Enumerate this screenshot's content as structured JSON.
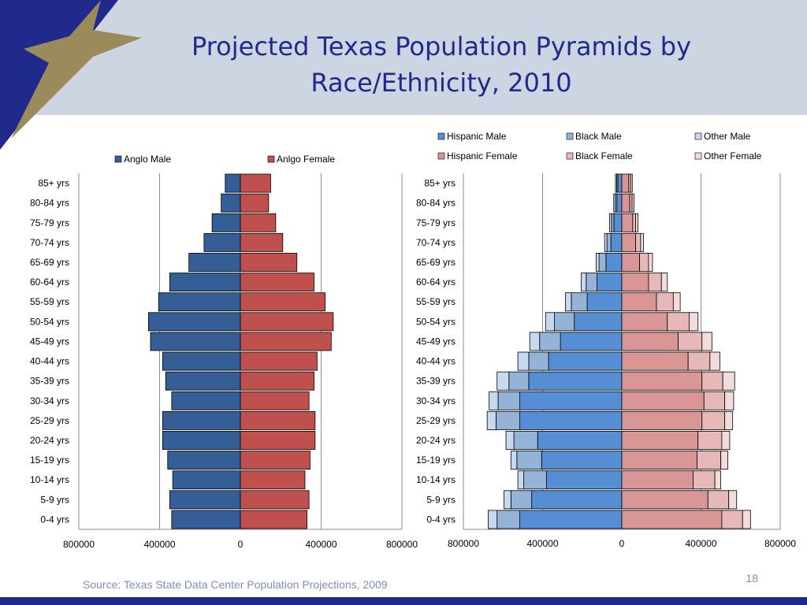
{
  "header": {
    "title_line1": "Projected Texas Population Pyramids by",
    "title_line2": "Race/Ethnicity, 2010"
  },
  "footer": {
    "source": "Source: Texas State Data Center Population Projections, 2009",
    "page_number": "18"
  },
  "colors": {
    "header_bg": "#cdd4e2",
    "title": "#1f2a8a",
    "anglo_male": "#355d96",
    "anglo_female": "#c0504d",
    "hispanic_male": "#558ed5",
    "hispanic_female": "#d99694",
    "black_male": "#95b3d7",
    "black_female": "#e6b9b8",
    "other_male": "#c6d9f1",
    "other_female": "#f2dcdb",
    "axis_highlight": "#ff0000"
  },
  "chart_data": [
    {
      "type": "bar",
      "orientation": "horizontal-pyramid",
      "categories": [
        "0-4 yrs",
        "5-9 yrs",
        "10-14 yrs",
        "15-19 yrs",
        "20-24 yrs",
        "25-29 yrs",
        "30-34 yrs",
        "35-39 yrs",
        "40-44 yrs",
        "45-49 yrs",
        "50-54 yrs",
        "55-59 yrs",
        "60-64 yrs",
        "65-69 yrs",
        "70-74 yrs",
        "75-79 yrs",
        "80-84 yrs",
        "85+ yrs"
      ],
      "series": [
        {
          "name": "Anglo Male",
          "side": "left",
          "values": [
            340000,
            350000,
            335000,
            360000,
            385000,
            385000,
            340000,
            370000,
            385000,
            445000,
            455000,
            405000,
            350000,
            255000,
            180000,
            140000,
            95000,
            75000
          ]
        },
        {
          "name": "Anlgo Female",
          "side": "right",
          "values": [
            330000,
            340000,
            320000,
            345000,
            370000,
            370000,
            340000,
            365000,
            380000,
            450000,
            460000,
            420000,
            365000,
            280000,
            210000,
            175000,
            140000,
            150000
          ]
        }
      ],
      "xlim": [
        -800000,
        800000
      ],
      "x_ticks": [
        -800000,
        -400000,
        0,
        400000,
        800000
      ],
      "x_tick_labels": [
        "800000",
        "400000",
        "0",
        "400000",
        "800000"
      ],
      "grid": "vertical",
      "legend_position": "top"
    },
    {
      "type": "bar",
      "orientation": "horizontal-pyramid-stacked",
      "categories": [
        "0-4 yrs",
        "5-9 yrs",
        "10-14 yrs",
        "15-19 yrs",
        "20-24 yrs",
        "25-29 yrs",
        "30-34 yrs",
        "35-39 yrs",
        "40-44 yrs",
        "45-49 yrs",
        "50-54 yrs",
        "55-59 yrs",
        "60-64 yrs",
        "65-69 yrs",
        "70-74 yrs",
        "75-79 yrs",
        "80-84 yrs",
        "85+ yrs"
      ],
      "series": [
        {
          "name": "Hispanic Male",
          "side": "left",
          "values": [
            515000,
            455000,
            380000,
            405000,
            425000,
            515000,
            515000,
            470000,
            370000,
            310000,
            240000,
            175000,
            125000,
            80000,
            55000,
            40000,
            25000,
            20000
          ]
        },
        {
          "name": "Black Male",
          "side": "left",
          "values": [
            115000,
            105000,
            115000,
            125000,
            120000,
            120000,
            110000,
            100000,
            100000,
            105000,
            100000,
            80000,
            55000,
            35000,
            20000,
            12000,
            8000,
            6000
          ]
        },
        {
          "name": "Other Male",
          "side": "left",
          "values": [
            45000,
            35000,
            30000,
            30000,
            40000,
            45000,
            45000,
            60000,
            55000,
            50000,
            45000,
            30000,
            25000,
            15000,
            12000,
            10000,
            8000,
            6000
          ]
        },
        {
          "name": "Hispanic Female",
          "side": "right",
          "values": [
            505000,
            435000,
            360000,
            380000,
            385000,
            405000,
            415000,
            405000,
            335000,
            285000,
            230000,
            175000,
            135000,
            90000,
            70000,
            55000,
            40000,
            35000
          ]
        },
        {
          "name": "Black Female",
          "side": "right",
          "values": [
            105000,
            105000,
            110000,
            120000,
            120000,
            115000,
            105000,
            105000,
            110000,
            120000,
            110000,
            85000,
            65000,
            45000,
            25000,
            15000,
            12000,
            10000
          ]
        },
        {
          "name": "Other Female",
          "side": "right",
          "values": [
            40000,
            40000,
            30000,
            35000,
            40000,
            40000,
            45000,
            60000,
            50000,
            50000,
            45000,
            35000,
            30000,
            20000,
            15000,
            12000,
            10000,
            8000
          ]
        }
      ],
      "xlim": [
        -800000,
        800000
      ],
      "x_ticks": [
        -800000,
        -400000,
        0,
        400000,
        800000
      ],
      "x_tick_labels": [
        "800000",
        "400000",
        "0",
        "400000",
        "800000"
      ],
      "grid": "vertical",
      "legend_position": "top",
      "legend_columns": 3
    }
  ]
}
